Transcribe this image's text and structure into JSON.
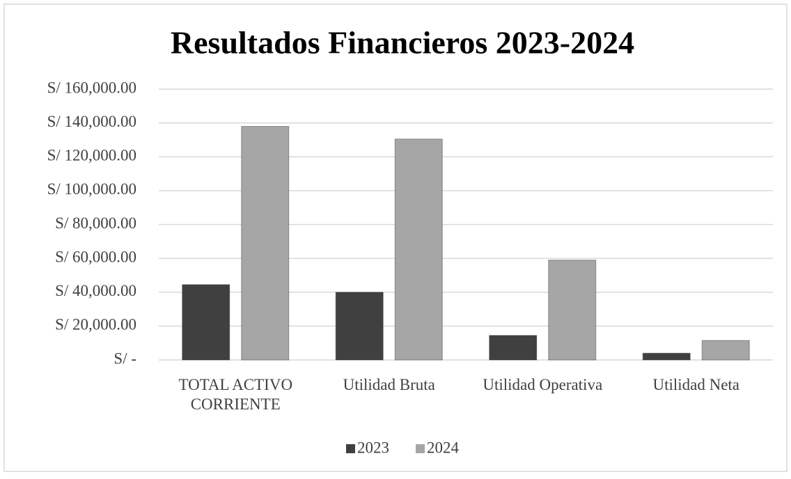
{
  "chart_data": {
    "type": "bar",
    "title": "Resultados Financieros 2023-2024",
    "categories": [
      "TOTAL ACTIVO CORRIENTE",
      "Utilidad Bruta",
      "Utilidad Operativa",
      "Utilidad Neta"
    ],
    "series": [
      {
        "name": "2023",
        "color": "#404040",
        "values": [
          44500,
          40000,
          14500,
          4000
        ]
      },
      {
        "name": "2024",
        "color": "#a6a6a6",
        "values": [
          138000,
          130500,
          59000,
          11500
        ]
      }
    ],
    "ylim": [
      0,
      160000
    ],
    "yticks": [
      {
        "value": 0,
        "label": "S/ -"
      },
      {
        "value": 20000,
        "label": "S/ 20,000.00"
      },
      {
        "value": 40000,
        "label": "S/ 40,000.00"
      },
      {
        "value": 60000,
        "label": "S/ 60,000.00"
      },
      {
        "value": 80000,
        "label": "S/ 80,000.00"
      },
      {
        "value": 100000,
        "label": "S/ 100,000.00"
      },
      {
        "value": 120000,
        "label": "S/ 120,000.00"
      },
      {
        "value": 140000,
        "label": "S/ 140,000.00"
      },
      {
        "value": 160000,
        "label": "S/ 160,000.00"
      }
    ],
    "grid": true,
    "legend": "bottom"
  }
}
